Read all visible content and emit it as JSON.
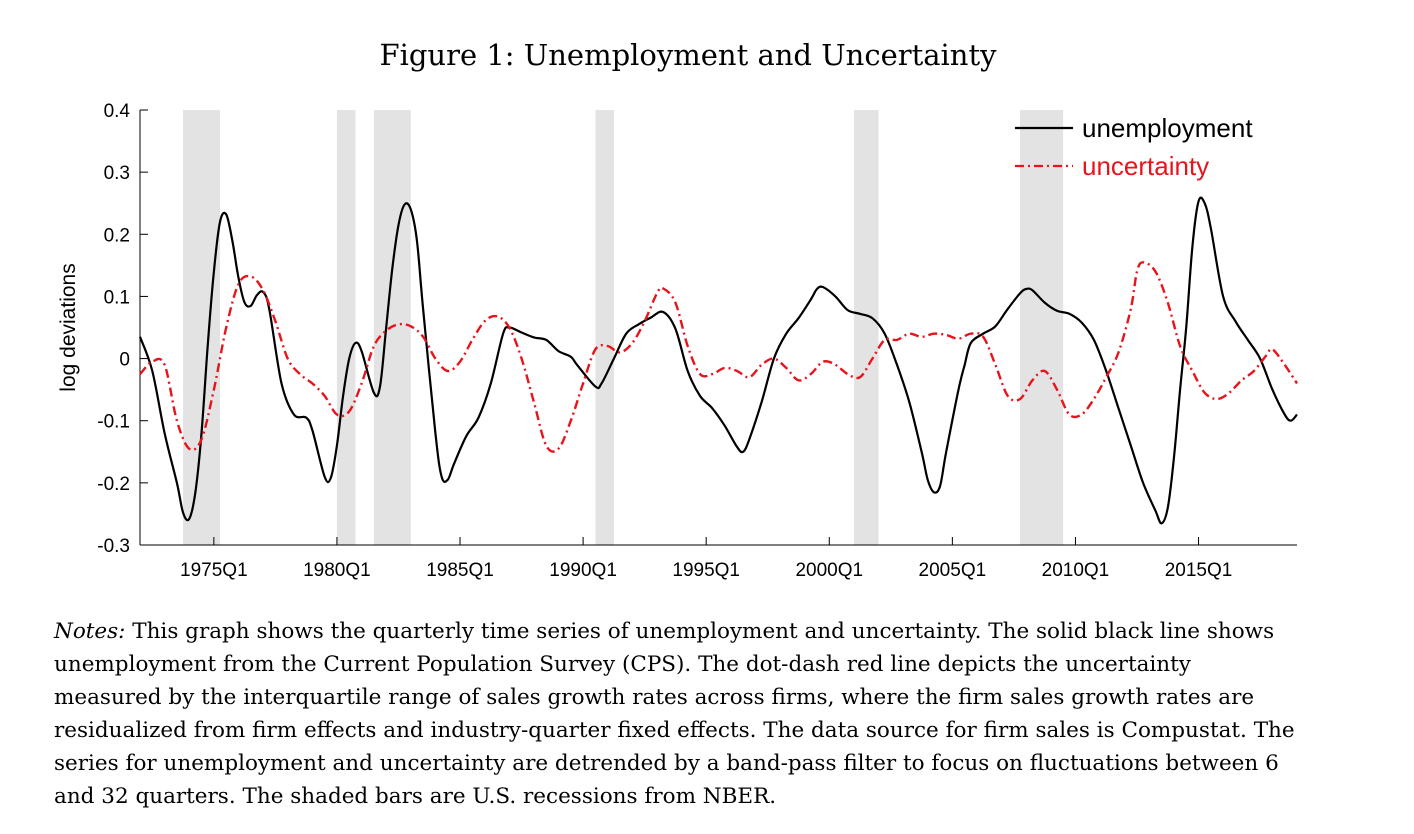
{
  "figure_title": "Figure 1: Unemployment and Uncertainty",
  "notes_label": "Notes:",
  "notes_text": "This graph shows the quarterly time series of unemployment and uncertainty.  The solid black line shows unemployment from the Current Population Survey (CPS). The dot-dash red line depicts the uncertainty measured by the interquartile range of sales growth rates across firms, where the firm sales growth rates are residualized from firm effects and industry-quarter fixed effects. The data source for firm sales is Compustat.  The series for unemployment and uncertainty are detrended by a band-pass filter to focus on fluctuations between 6 and 32 quarters. The shaded bars are U.S. recessions from NBER.",
  "chart_data": {
    "type": "line",
    "title": "",
    "xlabel": "",
    "ylabel": "log deviations",
    "xlim": [
      "1972Q1",
      "2019Q1"
    ],
    "ylim": [
      -0.3,
      0.4
    ],
    "yticks": [
      0.4,
      0.3,
      0.2,
      0.1,
      0,
      -0.1,
      -0.2,
      -0.3
    ],
    "ytick_labels": [
      "0.4",
      "0.3",
      "0.2",
      "0.1",
      "0",
      "-0.1",
      "-0.2",
      "-0.3"
    ],
    "xticks": [
      "1975Q1",
      "1980Q1",
      "1985Q1",
      "1990Q1",
      "1995Q1",
      "2000Q1",
      "2005Q1",
      "2010Q1",
      "2015Q1"
    ],
    "grid": false,
    "legend_position": "top-right",
    "recessions": [
      [
        "1973Q4",
        "1975Q1"
      ],
      [
        "1980Q1",
        "1980Q3"
      ],
      [
        "1981Q3",
        "1982Q4"
      ],
      [
        "1990Q3",
        "1991Q1"
      ],
      [
        "2001Q1",
        "2001Q4"
      ],
      [
        "2007Q4",
        "2009Q2"
      ]
    ],
    "series": [
      {
        "name": "unemployment",
        "color": "#000000",
        "style": "solid",
        "points": [
          [
            "1972Q1",
            0.035
          ],
          [
            "1972Q3",
            -0.02
          ],
          [
            "1973Q1",
            -0.12
          ],
          [
            "1973Q3",
            -0.2
          ],
          [
            "1973Q4",
            -0.248
          ],
          [
            "1974Q1",
            -0.258
          ],
          [
            "1974Q2",
            -0.215
          ],
          [
            "1974Q3",
            -0.12
          ],
          [
            "1974Q4",
            0.02
          ],
          [
            "1975Q1",
            0.14
          ],
          [
            "1975Q2",
            0.22
          ],
          [
            "1975Q3",
            0.232
          ],
          [
            "1975Q4",
            0.19
          ],
          [
            "1976Q1",
            0.13
          ],
          [
            "1976Q2",
            0.09
          ],
          [
            "1976Q3",
            0.085
          ],
          [
            "1976Q4",
            0.102
          ],
          [
            "1977Q1",
            0.107
          ],
          [
            "1977Q2",
            0.08
          ],
          [
            "1977Q4",
            -0.04
          ],
          [
            "1978Q2",
            -0.09
          ],
          [
            "1978Q4",
            -0.095
          ],
          [
            "1979Q1",
            -0.115
          ],
          [
            "1979Q3",
            -0.19
          ],
          [
            "1979Q4",
            -0.192
          ],
          [
            "1980Q1",
            -0.14
          ],
          [
            "1980Q2",
            -0.06
          ],
          [
            "1980Q3",
            0.0
          ],
          [
            "1980Q4",
            0.025
          ],
          [
            "1981Q1",
            0.012
          ],
          [
            "1981Q3",
            -0.055
          ],
          [
            "1981Q4",
            -0.045
          ],
          [
            "1982Q1",
            0.05
          ],
          [
            "1982Q2",
            0.145
          ],
          [
            "1982Q3",
            0.215
          ],
          [
            "1982Q4",
            0.248
          ],
          [
            "1983Q1",
            0.24
          ],
          [
            "1983Q2",
            0.19
          ],
          [
            "1983Q3",
            0.08
          ],
          [
            "1984Q1",
            -0.12
          ],
          [
            "1984Q2",
            -0.19
          ],
          [
            "1984Q3",
            -0.195
          ],
          [
            "1984Q4",
            -0.17
          ],
          [
            "1985Q2",
            -0.125
          ],
          [
            "1985Q4",
            -0.095
          ],
          [
            "1986Q2",
            -0.04
          ],
          [
            "1986Q4",
            0.04
          ],
          [
            "1987Q1",
            0.05
          ],
          [
            "1987Q3",
            0.042
          ],
          [
            "1988Q1",
            0.034
          ],
          [
            "1988Q3",
            0.03
          ],
          [
            "1989Q1",
            0.012
          ],
          [
            "1989Q3",
            0.003
          ],
          [
            "1989Q4",
            -0.01
          ],
          [
            "1990Q3",
            -0.045
          ],
          [
            "1990Q4",
            -0.04
          ],
          [
            "1991Q2",
            0.0
          ],
          [
            "1991Q4",
            0.04
          ],
          [
            "1992Q2",
            0.055
          ],
          [
            "1992Q4",
            0.066
          ],
          [
            "1993Q2",
            0.075
          ],
          [
            "1993Q4",
            0.048
          ],
          [
            "1994Q2",
            -0.02
          ],
          [
            "1994Q4",
            -0.06
          ],
          [
            "1995Q2",
            -0.08
          ],
          [
            "1995Q4",
            -0.108
          ],
          [
            "1996Q2",
            -0.142
          ],
          [
            "1996Q3",
            -0.15
          ],
          [
            "1996Q4",
            -0.13
          ],
          [
            "1997Q2",
            -0.07
          ],
          [
            "1997Q4",
            0.0
          ],
          [
            "1998Q2",
            0.04
          ],
          [
            "1998Q4",
            0.065
          ],
          [
            "1999Q2",
            0.095
          ],
          [
            "1999Q3",
            0.112
          ],
          [
            "1999Q4",
            0.115
          ],
          [
            "2000Q2",
            0.1
          ],
          [
            "2000Q4",
            0.078
          ],
          [
            "2001Q2",
            0.072
          ],
          [
            "2001Q4",
            0.065
          ],
          [
            "2002Q2",
            0.04
          ],
          [
            "2002Q4",
            -0.01
          ],
          [
            "2003Q2",
            -0.07
          ],
          [
            "2003Q4",
            -0.15
          ],
          [
            "2004Q1",
            -0.195
          ],
          [
            "2004Q2",
            -0.215
          ],
          [
            "2004Q3",
            -0.205
          ],
          [
            "2004Q4",
            -0.15
          ],
          [
            "2005Q2",
            -0.05
          ],
          [
            "2005Q3",
            -0.01
          ],
          [
            "2005Q4",
            0.025
          ],
          [
            "2006Q2",
            0.04
          ],
          [
            "2006Q4",
            0.052
          ],
          [
            "2007Q2",
            0.08
          ],
          [
            "2007Q4",
            0.105
          ],
          [
            "2008Q1",
            0.112
          ],
          [
            "2008Q2",
            0.11
          ],
          [
            "2008Q4",
            0.09
          ],
          [
            "2009Q2",
            0.077
          ],
          [
            "2009Q4",
            0.072
          ],
          [
            "2010Q2",
            0.058
          ],
          [
            "2010Q4",
            0.03
          ],
          [
            "2011Q2",
            -0.02
          ],
          [
            "2011Q4",
            -0.08
          ],
          [
            "2012Q2",
            -0.14
          ],
          [
            "2012Q4",
            -0.2
          ],
          [
            "2013Q2",
            -0.245
          ],
          [
            "2013Q3",
            -0.265
          ],
          [
            "2013Q4",
            -0.24
          ],
          [
            "2014Q1",
            -0.16
          ],
          [
            "2014Q2",
            -0.05
          ],
          [
            "2014Q3",
            0.05
          ],
          [
            "2014Q4",
            0.18
          ],
          [
            "2015Q1",
            0.253
          ],
          [
            "2015Q2",
            0.25
          ],
          [
            "2015Q3",
            0.21
          ],
          [
            "2016Q1",
            0.1
          ],
          [
            "2016Q3",
            0.06
          ],
          [
            "2017Q1",
            0.03
          ],
          [
            "2017Q3",
            0.0
          ],
          [
            "2018Q1",
            -0.05
          ],
          [
            "2018Q3",
            -0.09
          ],
          [
            "2018Q4",
            -0.1
          ],
          [
            "2019Q1",
            -0.09
          ]
        ]
      },
      {
        "name": "uncertainty",
        "color": "#e8141c",
        "style": "dash-dot",
        "points": [
          [
            "1972Q1",
            -0.025
          ],
          [
            "1972Q3",
            -0.005
          ],
          [
            "1973Q1",
            -0.01
          ],
          [
            "1973Q3",
            -0.1
          ],
          [
            "1974Q1",
            -0.145
          ],
          [
            "1974Q3",
            -0.13
          ],
          [
            "1975Q1",
            -0.05
          ],
          [
            "1975Q3",
            0.05
          ],
          [
            "1976Q1",
            0.12
          ],
          [
            "1976Q3",
            0.132
          ],
          [
            "1977Q1",
            0.11
          ],
          [
            "1977Q3",
            0.06
          ],
          [
            "1978Q1",
            0.0
          ],
          [
            "1978Q3",
            -0.025
          ],
          [
            "1979Q1",
            -0.04
          ],
          [
            "1979Q3",
            -0.06
          ],
          [
            "1980Q1",
            -0.09
          ],
          [
            "1980Q3",
            -0.085
          ],
          [
            "1981Q1",
            -0.04
          ],
          [
            "1981Q3",
            0.02
          ],
          [
            "1982Q1",
            0.045
          ],
          [
            "1982Q3",
            0.055
          ],
          [
            "1983Q1",
            0.052
          ],
          [
            "1983Q3",
            0.035
          ],
          [
            "1984Q1",
            0.0
          ],
          [
            "1984Q3",
            -0.02
          ],
          [
            "1985Q1",
            -0.005
          ],
          [
            "1985Q3",
            0.03
          ],
          [
            "1986Q1",
            0.06
          ],
          [
            "1986Q3",
            0.068
          ],
          [
            "1987Q1",
            0.05
          ],
          [
            "1987Q3",
            0.0
          ],
          [
            "1988Q1",
            -0.07
          ],
          [
            "1988Q3",
            -0.14
          ],
          [
            "1989Q1",
            -0.145
          ],
          [
            "1989Q3",
            -0.1
          ],
          [
            "1990Q1",
            -0.04
          ],
          [
            "1990Q3",
            0.015
          ],
          [
            "1991Q1",
            0.02
          ],
          [
            "1991Q3",
            0.01
          ],
          [
            "1992Q1",
            0.025
          ],
          [
            "1992Q3",
            0.06
          ],
          [
            "1993Q1",
            0.105
          ],
          [
            "1993Q2",
            0.113
          ],
          [
            "1993Q4",
            0.09
          ],
          [
            "1994Q2",
            0.02
          ],
          [
            "1994Q4",
            -0.025
          ],
          [
            "1995Q2",
            -0.025
          ],
          [
            "1995Q4",
            -0.015
          ],
          [
            "1996Q2",
            -0.02
          ],
          [
            "1996Q4",
            -0.03
          ],
          [
            "1997Q2",
            -0.01
          ],
          [
            "1997Q4",
            0.0
          ],
          [
            "1998Q2",
            -0.015
          ],
          [
            "1998Q4",
            -0.035
          ],
          [
            "1999Q2",
            -0.025
          ],
          [
            "1999Q4",
            -0.005
          ],
          [
            "2000Q2",
            -0.01
          ],
          [
            "2000Q4",
            -0.025
          ],
          [
            "2001Q2",
            -0.03
          ],
          [
            "2001Q4",
            0.0
          ],
          [
            "2002Q2",
            0.03
          ],
          [
            "2002Q4",
            0.03
          ],
          [
            "2003Q2",
            0.04
          ],
          [
            "2003Q4",
            0.035
          ],
          [
            "2004Q2",
            0.04
          ],
          [
            "2004Q4",
            0.038
          ],
          [
            "2005Q2",
            0.032
          ],
          [
            "2005Q4",
            0.04
          ],
          [
            "2006Q2",
            0.035
          ],
          [
            "2006Q4",
            -0.01
          ],
          [
            "2007Q2",
            -0.06
          ],
          [
            "2007Q4",
            -0.065
          ],
          [
            "2008Q2",
            -0.035
          ],
          [
            "2008Q4",
            -0.02
          ],
          [
            "2009Q2",
            -0.05
          ],
          [
            "2009Q4",
            -0.09
          ],
          [
            "2010Q2",
            -0.09
          ],
          [
            "2010Q4",
            -0.065
          ],
          [
            "2011Q2",
            -0.03
          ],
          [
            "2011Q4",
            0.01
          ],
          [
            "2012Q2",
            0.08
          ],
          [
            "2012Q3",
            0.14
          ],
          [
            "2012Q4",
            0.155
          ],
          [
            "2013Q2",
            0.14
          ],
          [
            "2013Q4",
            0.09
          ],
          [
            "2014Q2",
            0.02
          ],
          [
            "2014Q4",
            -0.02
          ],
          [
            "2015Q2",
            -0.055
          ],
          [
            "2015Q4",
            -0.065
          ],
          [
            "2016Q2",
            -0.055
          ],
          [
            "2016Q4",
            -0.035
          ],
          [
            "2017Q2",
            -0.02
          ],
          [
            "2017Q4",
            0.005
          ],
          [
            "2018Q1",
            0.015
          ],
          [
            "2018Q3",
            -0.01
          ],
          [
            "2019Q1",
            -0.04
          ]
        ]
      }
    ]
  }
}
